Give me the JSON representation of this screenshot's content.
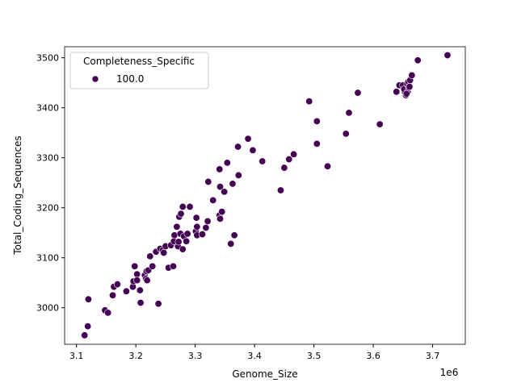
{
  "chart_data": {
    "type": "scatter",
    "title": "",
    "xlabel": "Genome_Size",
    "ylabel": "Total_Coding_Sequences",
    "x_offset_label": "1e6",
    "xlim": [
      3080000,
      3755000
    ],
    "ylim": [
      2927,
      3522
    ],
    "x_ticks": [
      3100000,
      3200000,
      3300000,
      3400000,
      3500000,
      3600000,
      3700000
    ],
    "x_tick_labels": [
      "3.1",
      "3.2",
      "3.3",
      "3.4",
      "3.5",
      "3.6",
      "3.7"
    ],
    "y_ticks": [
      3000,
      3100,
      3200,
      3300,
      3400,
      3500
    ],
    "y_tick_labels": [
      "3000",
      "3100",
      "3200",
      "3300",
      "3400",
      "3500"
    ],
    "grid": false,
    "legend": {
      "title": "Completeness_Specific",
      "placement": "top-left",
      "entries": [
        {
          "label": "100.0",
          "color": "#440154"
        }
      ]
    },
    "marker_color": "#440154",
    "series": [
      {
        "name": "100.0",
        "points": [
          [
            3113600,
            2945
          ],
          [
            3119000,
            2963
          ],
          [
            3120000,
            3017
          ],
          [
            3148000,
            2995
          ],
          [
            3153000,
            2990
          ],
          [
            3161000,
            3025
          ],
          [
            3163000,
            3042
          ],
          [
            3169000,
            3047
          ],
          [
            3184000,
            3033
          ],
          [
            3195000,
            3042
          ],
          [
            3196000,
            3053
          ],
          [
            3198000,
            3083
          ],
          [
            3202000,
            3067
          ],
          [
            3207000,
            3035
          ],
          [
            3208000,
            3010
          ],
          [
            3202000,
            3055
          ],
          [
            3215000,
            3065
          ],
          [
            3218000,
            3073
          ],
          [
            3217000,
            3058
          ],
          [
            3219000,
            3055
          ],
          [
            3221000,
            3075
          ],
          [
            3224000,
            3103
          ],
          [
            3228000,
            3083
          ],
          [
            3238000,
            3008
          ],
          [
            3234000,
            3112
          ],
          [
            3241000,
            3118
          ],
          [
            3245000,
            3115
          ],
          [
            3250000,
            3123
          ],
          [
            3247000,
            3110
          ],
          [
            3255000,
            3080
          ],
          [
            3259000,
            3125
          ],
          [
            3263000,
            3083
          ],
          [
            3264000,
            3133
          ],
          [
            3265000,
            3145
          ],
          [
            3271000,
            3123
          ],
          [
            3272000,
            3132
          ],
          [
            3275000,
            3148
          ],
          [
            3269000,
            3162
          ],
          [
            3273000,
            3182
          ],
          [
            3276000,
            3188
          ],
          [
            3279000,
            3202
          ],
          [
            3279000,
            3117
          ],
          [
            3281000,
            3143
          ],
          [
            3285000,
            3133
          ],
          [
            3287000,
            3148
          ],
          [
            3291000,
            3202
          ],
          [
            3301000,
            3153
          ],
          [
            3302000,
            3180
          ],
          [
            3303000,
            3145
          ],
          [
            3303000,
            3162
          ],
          [
            3312000,
            3147
          ],
          [
            3318000,
            3160
          ],
          [
            3321000,
            3173
          ],
          [
            3322000,
            3252
          ],
          [
            3330000,
            3215
          ],
          [
            3341000,
            3277
          ],
          [
            3342000,
            3242
          ],
          [
            3341000,
            3185
          ],
          [
            3342000,
            3178
          ],
          [
            3345000,
            3192
          ],
          [
            3349000,
            3232
          ],
          [
            3354000,
            3290
          ],
          [
            3360000,
            3128
          ],
          [
            3363000,
            3248
          ],
          [
            3366000,
            3145
          ],
          [
            3372000,
            3322
          ],
          [
            3373000,
            3265
          ],
          [
            3389000,
            3338
          ],
          [
            3397000,
            3315
          ],
          [
            3413000,
            3293
          ],
          [
            3444000,
            3235
          ],
          [
            3450000,
            3280
          ],
          [
            3458000,
            3297
          ],
          [
            3466000,
            3307
          ],
          [
            3492000,
            3413
          ],
          [
            3505000,
            3373
          ],
          [
            3505000,
            3328
          ],
          [
            3523000,
            3283
          ],
          [
            3554000,
            3348
          ],
          [
            3559000,
            3390
          ],
          [
            3574000,
            3430
          ],
          [
            3611000,
            3367
          ],
          [
            3639000,
            3432
          ],
          [
            3644000,
            3445
          ],
          [
            3653000,
            3432
          ],
          [
            3650000,
            3445
          ],
          [
            3652000,
            3437
          ],
          [
            3655000,
            3425
          ],
          [
            3657000,
            3448
          ],
          [
            3659000,
            3452
          ],
          [
            3662000,
            3455
          ],
          [
            3658000,
            3432
          ],
          [
            3656000,
            3428
          ],
          [
            3660000,
            3440
          ],
          [
            3661000,
            3442
          ],
          [
            3665000,
            3465
          ],
          [
            3675000,
            3495
          ],
          [
            3725000,
            3505
          ]
        ]
      }
    ]
  }
}
